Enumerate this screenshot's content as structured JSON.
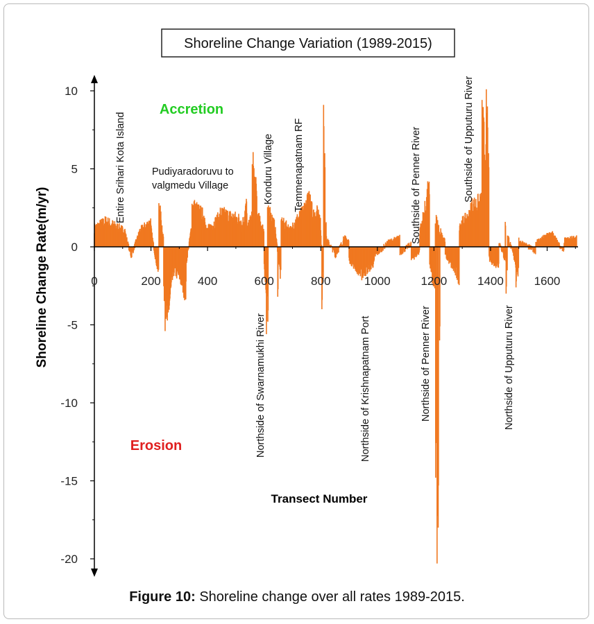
{
  "caption": {
    "label": "Figure 10:",
    "text": " Shoreline change over all rates 1989-2015."
  },
  "chart_data": {
    "type": "bar",
    "title": "Shoreline Change Variation (1989-2015)",
    "xlabel": "Transect Number",
    "ylabel": "Shoreline Change Rate(m/yr)",
    "xlim": [
      0,
      1710
    ],
    "ylim": [
      -20.5,
      10.5
    ],
    "x_ticks": [
      0,
      200,
      400,
      600,
      800,
      1000,
      1200,
      1400,
      1600
    ],
    "y_ticks": [
      10,
      5,
      0,
      -5,
      -10,
      -15,
      -20
    ],
    "color": "#f07820",
    "zones": [
      {
        "label": "Accretion",
        "color": "#22cc22"
      },
      {
        "label": "Erosion",
        "color": "#e02020"
      }
    ],
    "annotations": [
      {
        "text": "Entire Srihari Kota Island",
        "x": 90,
        "orientation": "vertical"
      },
      {
        "text": "Pudiyaradoruvu to",
        "x": 200,
        "orientation": "horizontal"
      },
      {
        "text": "valgmedu Village",
        "x": 200,
        "orientation": "horizontal"
      },
      {
        "text": "Northside of Swarnamukhi River",
        "x": 590,
        "orientation": "vertical"
      },
      {
        "text": "Konduru Village",
        "x": 620,
        "orientation": "vertical"
      },
      {
        "text": "Temmenapatnam RF",
        "x": 720,
        "orientation": "vertical"
      },
      {
        "text": "Northside of Krishnapatnam Port",
        "x": 960,
        "orientation": "vertical"
      },
      {
        "text": "Southside of Penner River",
        "x": 1140,
        "orientation": "vertical"
      },
      {
        "text": "Northside of Penner River",
        "x": 1180,
        "orientation": "vertical"
      },
      {
        "text": "Southside of Upputuru River",
        "x": 1340,
        "orientation": "vertical"
      },
      {
        "text": "Northside of Upputuru River",
        "x": 1460,
        "orientation": "vertical"
      }
    ],
    "segments": [
      {
        "x0": 0,
        "x1": 40,
        "v0": 1.2,
        "v1": 1.6
      },
      {
        "x0": 40,
        "x1": 110,
        "v0": 1.6,
        "v1": 1.0
      },
      {
        "x0": 110,
        "x1": 130,
        "v0": 0.8,
        "v1": -0.6
      },
      {
        "x0": 130,
        "x1": 160,
        "v0": -0.6,
        "v1": 1.0
      },
      {
        "x0": 160,
        "x1": 200,
        "v0": 1.0,
        "v1": 1.6
      },
      {
        "x0": 200,
        "x1": 215,
        "v0": 1.2,
        "v1": -0.6
      },
      {
        "x0": 215,
        "x1": 230,
        "v0": -0.6,
        "v1": -2.0
      },
      {
        "x0": 230,
        "x1": 245,
        "v0": 2.5,
        "v1": 0.5
      },
      {
        "x0": 245,
        "x1": 262,
        "v0": -2.5,
        "v1": -5.2
      },
      {
        "x0": 262,
        "x1": 280,
        "v0": -4.0,
        "v1": -1.5
      },
      {
        "x0": 280,
        "x1": 300,
        "v0": -1.5,
        "v1": -1.8
      },
      {
        "x0": 300,
        "x1": 325,
        "v0": -1.8,
        "v1": -3.0
      },
      {
        "x0": 325,
        "x1": 345,
        "v0": -1.0,
        "v1": 1.5
      },
      {
        "x0": 345,
        "x1": 395,
        "v0": 2.6,
        "v1": 1.8
      },
      {
        "x0": 395,
        "x1": 445,
        "v0": 1.0,
        "v1": 1.9
      },
      {
        "x0": 445,
        "x1": 520,
        "v0": 2.1,
        "v1": 1.7
      },
      {
        "x0": 520,
        "x1": 540,
        "v0": 1.2,
        "v1": 2.8
      },
      {
        "x0": 540,
        "x1": 560,
        "v0": 1.0,
        "v1": 2.2
      },
      {
        "x0": 560,
        "x1": 575,
        "v0": 5.0,
        "v1": 3.0
      },
      {
        "x0": 575,
        "x1": 600,
        "v0": 2.0,
        "v1": 1.0
      },
      {
        "x0": 600,
        "x1": 612,
        "v0": -1.0,
        "v1": -4.5
      },
      {
        "x0": 612,
        "x1": 640,
        "v0": 2.6,
        "v1": 1.2
      },
      {
        "x0": 640,
        "x1": 660,
        "v0": 1.0,
        "v1": -2.2
      },
      {
        "x0": 660,
        "x1": 700,
        "v0": 1.6,
        "v1": 1.0
      },
      {
        "x0": 700,
        "x1": 740,
        "v0": 1.4,
        "v1": 2.2
      },
      {
        "x0": 740,
        "x1": 770,
        "v0": 2.4,
        "v1": 3.2
      },
      {
        "x0": 770,
        "x1": 800,
        "v0": 2.0,
        "v1": 2.2
      },
      {
        "x0": 800,
        "x1": 810,
        "v0": 1.0,
        "v1": -2.5
      },
      {
        "x0": 810,
        "x1": 820,
        "v0": 2.2,
        "v1": 1.5
      },
      {
        "x0": 820,
        "x1": 850,
        "v0": 0.5,
        "v1": -0.4
      },
      {
        "x0": 850,
        "x1": 880,
        "v0": -0.6,
        "v1": 0.4
      },
      {
        "x0": 880,
        "x1": 900,
        "v0": 0.6,
        "v1": 0.4
      },
      {
        "x0": 900,
        "x1": 940,
        "v0": -0.8,
        "v1": -1.6
      },
      {
        "x0": 940,
        "x1": 990,
        "v0": -1.8,
        "v1": -1.0
      },
      {
        "x0": 990,
        "x1": 1040,
        "v0": -0.6,
        "v1": 0.3
      },
      {
        "x0": 1040,
        "x1": 1080,
        "v0": 0.3,
        "v1": 0.6
      },
      {
        "x0": 1080,
        "x1": 1120,
        "v0": -0.4,
        "v1": 0.2
      },
      {
        "x0": 1120,
        "x1": 1150,
        "v0": -0.8,
        "v1": -0.3
      },
      {
        "x0": 1150,
        "x1": 1185,
        "v0": 1.0,
        "v1": 3.6
      },
      {
        "x0": 1185,
        "x1": 1205,
        "v0": -1.0,
        "v1": -3.0
      },
      {
        "x0": 1205,
        "x1": 1240,
        "v0": 1.8,
        "v1": 0.3
      },
      {
        "x0": 1240,
        "x1": 1290,
        "v0": -0.5,
        "v1": -2.0
      },
      {
        "x0": 1290,
        "x1": 1330,
        "v0": 1.4,
        "v1": 2.0
      },
      {
        "x0": 1330,
        "x1": 1370,
        "v0": 2.5,
        "v1": 2.8
      },
      {
        "x0": 1370,
        "x1": 1395,
        "v0": 8.0,
        "v1": 3.0
      },
      {
        "x0": 1395,
        "x1": 1430,
        "v0": -0.8,
        "v1": -1.2
      },
      {
        "x0": 1430,
        "x1": 1460,
        "v0": 0.4,
        "v1": -1.4
      },
      {
        "x0": 1460,
        "x1": 1500,
        "v0": 0.8,
        "v1": -1.8
      },
      {
        "x0": 1500,
        "x1": 1560,
        "v0": 0.4,
        "v1": -0.3
      },
      {
        "x0": 1560,
        "x1": 1620,
        "v0": 0.3,
        "v1": 0.9
      },
      {
        "x0": 1620,
        "x1": 1660,
        "v0": 0.8,
        "v1": -0.4
      },
      {
        "x0": 1660,
        "x1": 1705,
        "v0": 0.4,
        "v1": 0.6
      }
    ],
    "spikes": [
      {
        "x": 558,
        "v": 5.3
      },
      {
        "x": 562,
        "v": 5.2
      },
      {
        "x": 608,
        "v": -5.6
      },
      {
        "x": 613,
        "v": -4.8
      },
      {
        "x": 648,
        "v": -3.2
      },
      {
        "x": 250,
        "v": -5.4
      },
      {
        "x": 228,
        "v": 2.8
      },
      {
        "x": 804,
        "v": -4.0
      },
      {
        "x": 810,
        "v": 9.1
      },
      {
        "x": 814,
        "v": 6.0
      },
      {
        "x": 1178,
        "v": 4.2
      },
      {
        "x": 1206,
        "v": -14.8
      },
      {
        "x": 1211,
        "v": -20.3
      },
      {
        "x": 1215,
        "v": -18.0
      },
      {
        "x": 1220,
        "v": -6.0
      },
      {
        "x": 1385,
        "v": 10.1
      },
      {
        "x": 1389,
        "v": 9.0
      },
      {
        "x": 1393,
        "v": 6.0
      },
      {
        "x": 1455,
        "v": -3.0
      },
      {
        "x": 1490,
        "v": -2.6
      },
      {
        "x": 1452,
        "v": 1.6
      }
    ]
  }
}
